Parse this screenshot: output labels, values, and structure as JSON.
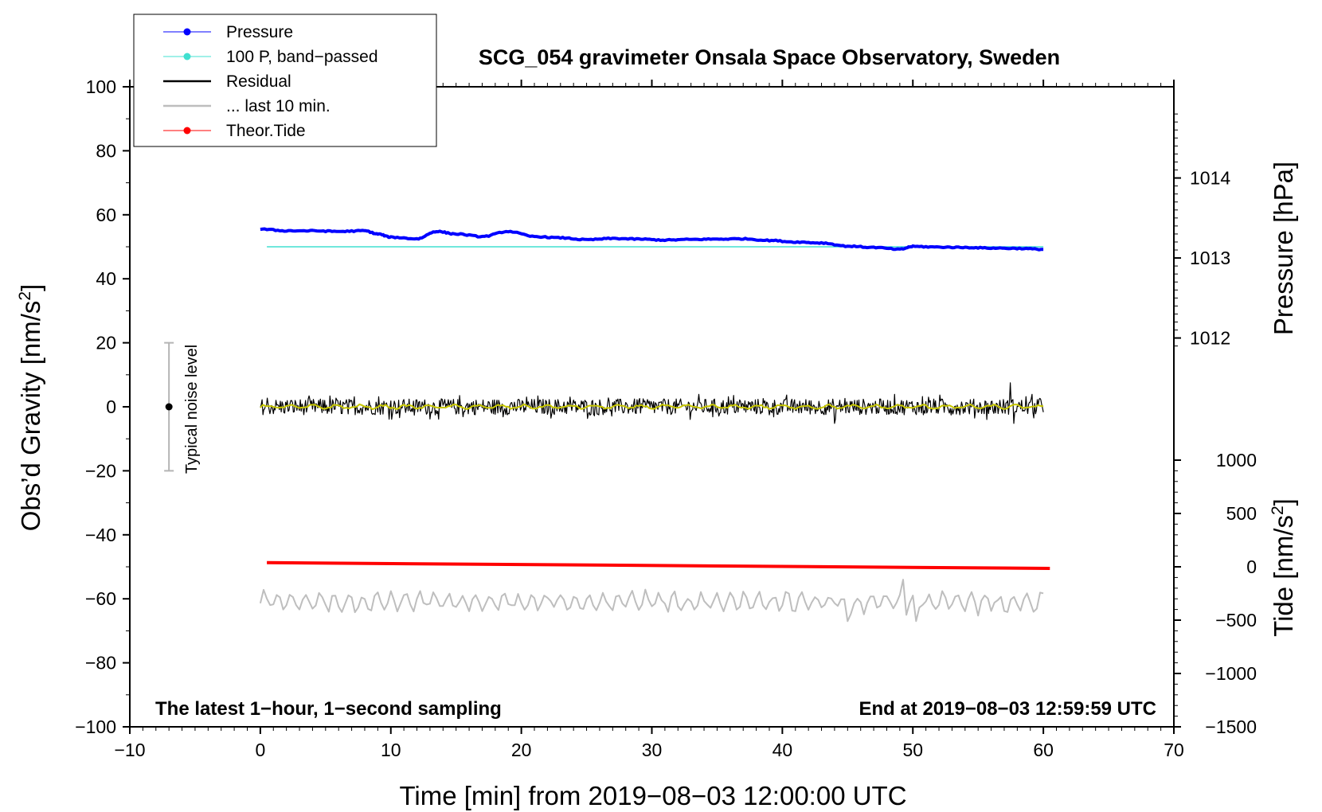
{
  "chart_data": {
    "type": "line",
    "title": "SCG_054 gravimeter Onsala Space Observatory, Sweden",
    "xlabel": "Time [min] from 2019−08−03 12:00:00 UTC",
    "ylabel_left": "Obs’d Gravity [nm/s",
    "ylabel_left_sup": "2",
    "ylabel_left_end": "]",
    "ylabel_right_pressure": "Pressure [hPa]",
    "ylabel_right_tide": "Tide [nm/s",
    "ylabel_right_tide_sup": "2",
    "ylabel_right_tide_end": "]",
    "xlim": [
      -10,
      70
    ],
    "ylim": [
      -100,
      100
    ],
    "x_ticks": [
      -10,
      0,
      10,
      20,
      30,
      40,
      50,
      60,
      70
    ],
    "x_tick_labels": [
      "−10",
      "0",
      "10",
      "20",
      "30",
      "40",
      "50",
      "60",
      "70"
    ],
    "y_ticks": [
      -100,
      -80,
      -60,
      -40,
      -20,
      0,
      20,
      40,
      60,
      80,
      100
    ],
    "y_tick_labels": [
      "−100",
      "−80",
      "−60",
      "−40",
      "−20",
      "0",
      "20",
      "40",
      "60",
      "80",
      "100"
    ],
    "pressure_axis": {
      "ticks": [
        1012,
        1013,
        1014
      ],
      "tick_labels": [
        "1012",
        "1013",
        "1014"
      ],
      "value_at_gravity": [
        {
          "hpa": 1012,
          "g": 21.5
        },
        {
          "hpa": 1014,
          "g": 71.5
        }
      ]
    },
    "tide_axis": {
      "ticks": [
        -1500,
        -1000,
        -500,
        0,
        500,
        1000
      ],
      "tick_labels": [
        "−1500",
        "−1000",
        "−500",
        "0",
        "500",
        "1000"
      ],
      "value_at_gravity": [
        {
          "nms2": -1500,
          "g": -100
        },
        {
          "nms2": 0,
          "g": -50
        }
      ]
    },
    "legend": {
      "position": "top-left",
      "entries": [
        {
          "label": "Pressure",
          "color": "#0000ff",
          "marker": true
        },
        {
          "label": "100 P, band−passed",
          "color": "#40e0d0",
          "marker": true
        },
        {
          "label": "Residual",
          "color": "#000000",
          "marker": false
        },
        {
          "label": "... last 10 min.",
          "color": "#bebebe",
          "marker": false
        },
        {
          "label": "Theor.Tide",
          "color": "#ff0000",
          "marker": true
        }
      ]
    },
    "series": [
      {
        "name": "Pressure",
        "color": "#0000ff",
        "x": [
          0,
          2,
          4,
          6,
          8,
          9,
          10,
          12,
          13.5,
          15,
          17,
          19,
          21,
          23,
          25,
          27,
          29,
          31,
          33,
          35,
          37,
          39,
          41,
          43,
          45,
          47,
          49,
          50,
          52,
          54,
          56,
          58,
          60
        ],
        "y": [
          55.5,
          55.0,
          55.0,
          54.8,
          55.0,
          54.0,
          53.0,
          52.5,
          54.8,
          54.0,
          53.2,
          54.8,
          53.2,
          52.8,
          52.2,
          52.6,
          52.4,
          52.1,
          52.3,
          52.4,
          52.5,
          52.0,
          51.5,
          51.2,
          50.2,
          49.8,
          49.2,
          50.1,
          49.9,
          49.8,
          49.6,
          49.5,
          49.2
        ]
      },
      {
        "name": "100 P, band−passed",
        "color": "#40e0d0",
        "x": [
          0.5,
          60
        ],
        "y": [
          50.0,
          50.0
        ]
      },
      {
        "name": "Residual",
        "color": "#000000",
        "x": [
          0,
          60
        ],
        "y": [
          0.0,
          0.0
        ],
        "typical_amplitude": 2.5,
        "spike_max": 7.5,
        "spike_min": -5.2
      },
      {
        "name": "Residual (smoothed)",
        "color": "#c8c800",
        "x": [
          0,
          60
        ],
        "y": [
          0.0,
          0.0
        ]
      },
      {
        "name": "... last 10 min.",
        "color": "#bebebe",
        "x": [
          0,
          60
        ],
        "y": [
          -61.0,
          -61.0
        ],
        "typical_amplitude": 3.0,
        "spike_max": -54.0,
        "spike_min": -67.0
      },
      {
        "name": "Theor.Tide",
        "color": "#ff0000",
        "x": [
          0.5,
          60.5
        ],
        "y": [
          -48.7,
          -50.5
        ]
      }
    ],
    "noise_bar": {
      "x": -7,
      "y": 0,
      "low": -20,
      "high": 20,
      "label": "Typical noise level"
    },
    "annotation_left": "The latest 1−hour, 1−second sampling",
    "annotation_right": "End at 2019−08−03 12:59:59 UTC"
  }
}
